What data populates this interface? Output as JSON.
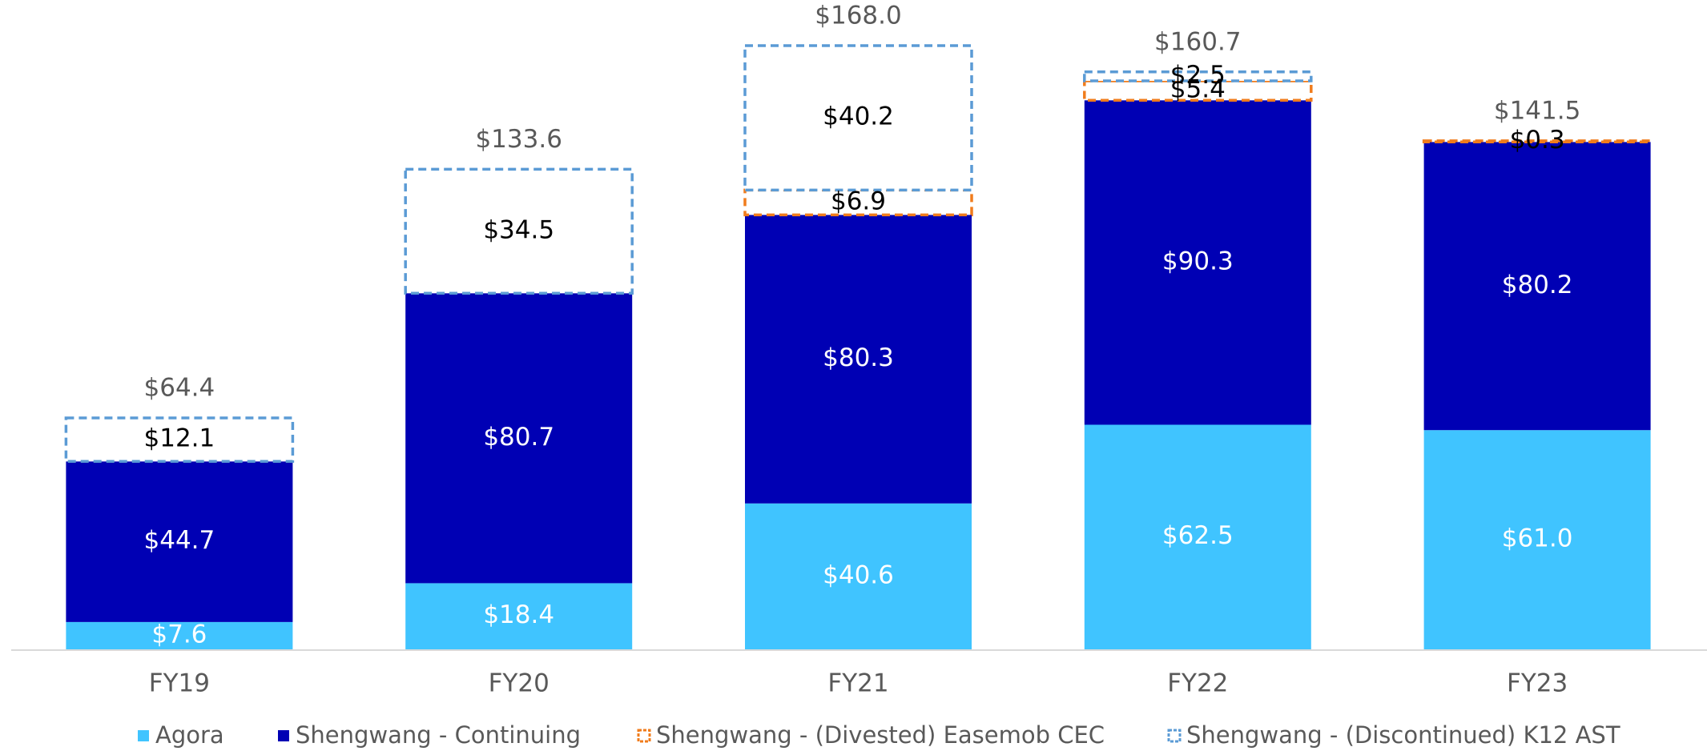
{
  "chart_data": {
    "type": "stacked_bar",
    "categories": [
      "FY19",
      "FY20",
      "FY21",
      "FY22",
      "FY23"
    ],
    "series": [
      {
        "name": "Agora",
        "color": "#40c4ff",
        "style": "solid",
        "label_color": "#ffffff",
        "values": [
          7.6,
          18.4,
          40.6,
          62.5,
          61.0
        ],
        "value_labels": [
          "$7.6",
          "$18.4",
          "$40.6",
          "$62.5",
          "$61.0"
        ]
      },
      {
        "name": "Shengwang - Continuing",
        "color": "#0000b4",
        "style": "solid",
        "label_color": "#ffffff",
        "values": [
          44.7,
          80.7,
          80.3,
          90.3,
          80.2
        ],
        "value_labels": [
          "$44.7",
          "$80.7",
          "$80.3",
          "$90.3",
          "$80.2"
        ]
      },
      {
        "name": "Shengwang - (Divested) Easemob CEC",
        "color": "#f07c1c",
        "style": "dashed",
        "label_color": "#000000",
        "values": [
          null,
          null,
          6.9,
          5.4,
          0.3
        ],
        "value_labels": [
          null,
          null,
          "$6.9",
          "$5.4",
          "$0.3"
        ]
      },
      {
        "name": "Shengwang - (Discontinued) K12 AST",
        "color": "#5b9bd5",
        "style": "dashed",
        "label_color": "#000000",
        "values": [
          12.1,
          34.5,
          40.2,
          2.5,
          null
        ],
        "value_labels": [
          "$12.1",
          "$34.5",
          "$40.2",
          "$2.5",
          null
        ]
      }
    ],
    "totals": [
      64.4,
      133.6,
      168.0,
      160.7,
      141.5
    ],
    "total_labels": [
      "$64.4",
      "$133.6",
      "$168.0",
      "$160.7",
      "$141.5"
    ]
  }
}
